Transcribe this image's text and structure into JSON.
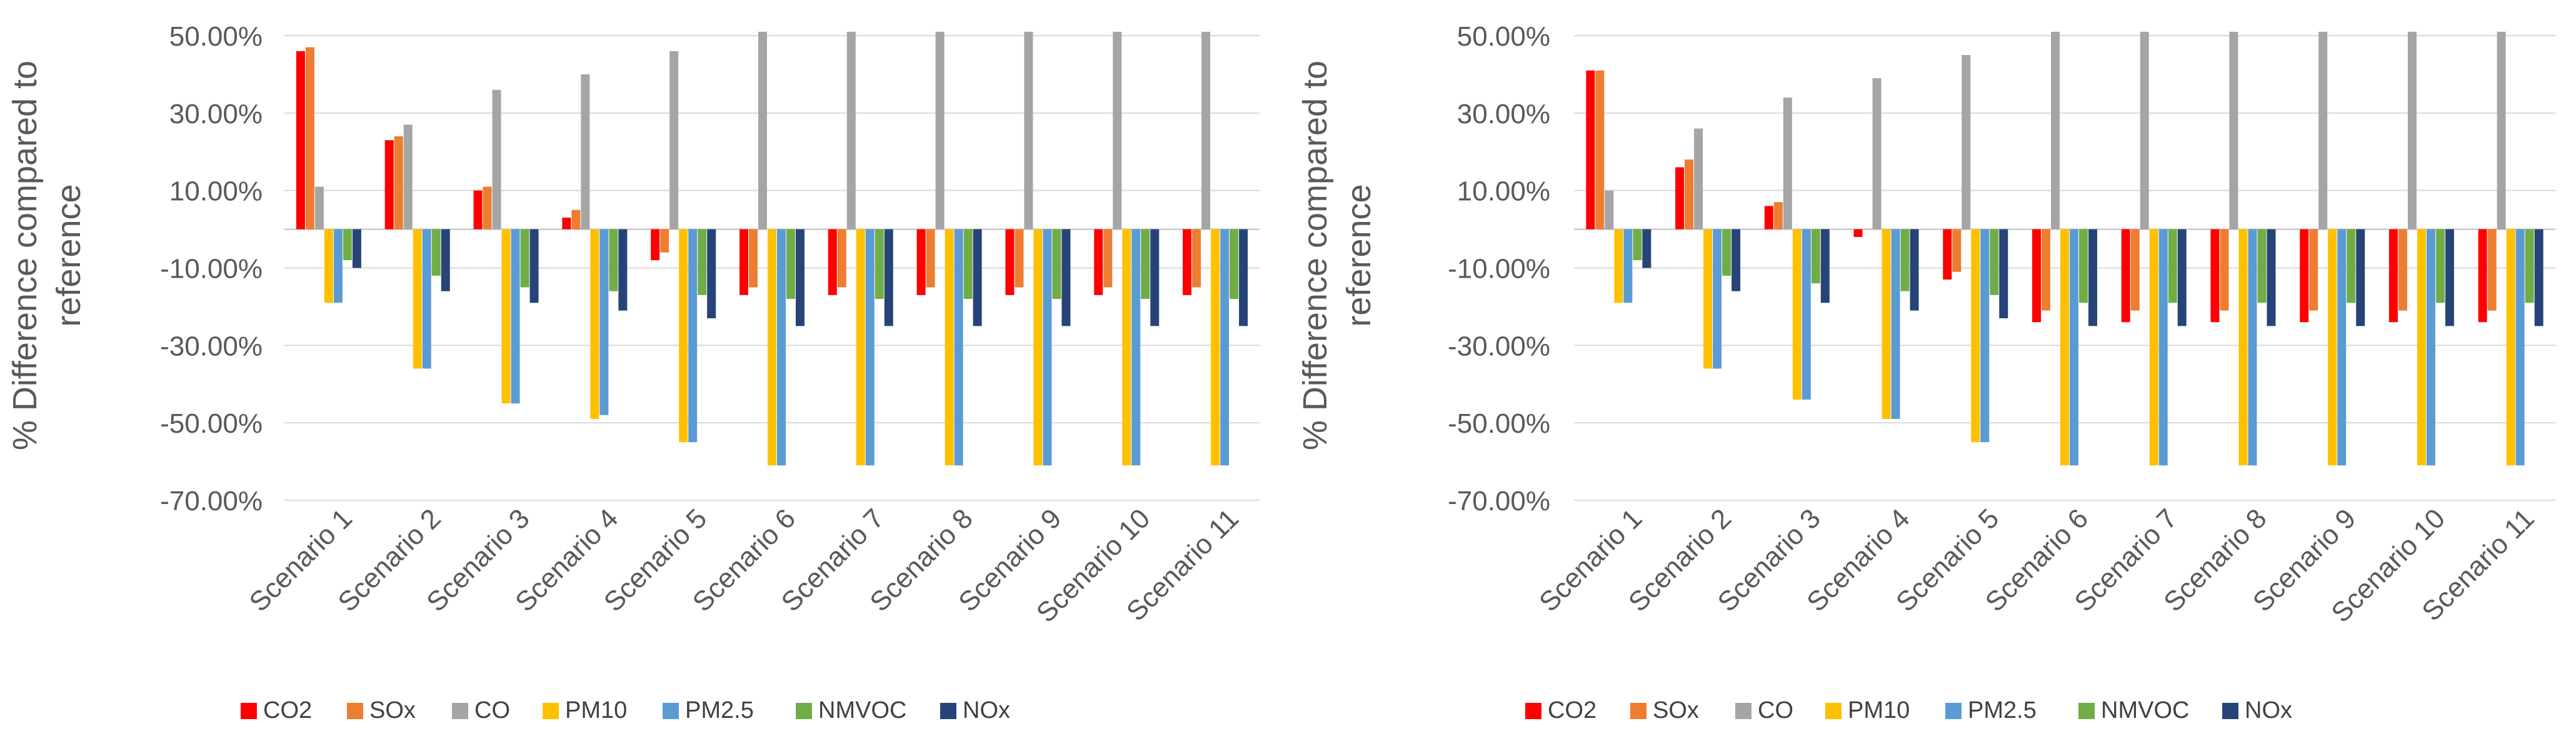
{
  "chart_data": [
    {
      "type": "bar",
      "title": "",
      "xlabel": "",
      "ylabel": "% Difference compared to reference",
      "ylim": [
        -0.7,
        0.5
      ],
      "yticks": [
        -0.7,
        -0.5,
        -0.3,
        -0.1,
        0.1,
        0.3,
        0.5
      ],
      "ytick_labels": [
        "-70.00%",
        "-50.00%",
        "-30.00%",
        "-10.00%",
        "10.00%",
        "30.00%",
        "50.00%"
      ],
      "grid": true,
      "legend": "bottom",
      "categories": [
        "Scenario 1",
        "Scenario 2",
        "Scenario 3",
        "Scenario 4",
        "Scenario 5",
        "Scenario 6",
        "Scenario 7",
        "Scenario 8",
        "Scenario 9",
        "Scenario 10",
        "Scenario 11"
      ],
      "series": [
        {
          "name": "CO2",
          "color": "#ff0000",
          "values": [
            0.46,
            0.23,
            0.1,
            0.03,
            -0.08,
            -0.17,
            -0.17,
            -0.17,
            -0.17,
            -0.17,
            -0.17
          ]
        },
        {
          "name": "SOx",
          "color": "#ed7d31",
          "values": [
            0.47,
            0.24,
            0.11,
            0.05,
            -0.06,
            -0.15,
            -0.15,
            -0.15,
            -0.15,
            -0.15,
            -0.15
          ]
        },
        {
          "name": "CO",
          "color": "#a5a5a5",
          "values": [
            0.11,
            0.27,
            0.36,
            0.4,
            0.46,
            0.51,
            0.51,
            0.51,
            0.51,
            0.51,
            0.51
          ]
        },
        {
          "name": "PM10",
          "color": "#ffc000",
          "values": [
            -0.19,
            -0.36,
            -0.45,
            -0.49,
            -0.55,
            -0.61,
            -0.61,
            -0.61,
            -0.61,
            -0.61,
            -0.61
          ]
        },
        {
          "name": "PM2.5",
          "color": "#5b9bd5",
          "values": [
            -0.19,
            -0.36,
            -0.45,
            -0.48,
            -0.55,
            -0.61,
            -0.61,
            -0.61,
            -0.61,
            -0.61,
            -0.61
          ]
        },
        {
          "name": "NMVOC",
          "color": "#70ad47",
          "values": [
            -0.08,
            -0.12,
            -0.15,
            -0.16,
            -0.17,
            -0.18,
            -0.18,
            -0.18,
            -0.18,
            -0.18,
            -0.18
          ]
        },
        {
          "name": "NOx",
          "color": "#264478",
          "values": [
            -0.1,
            -0.16,
            -0.19,
            -0.21,
            -0.23,
            -0.25,
            -0.25,
            -0.25,
            -0.25,
            -0.25,
            -0.25
          ]
        }
      ]
    },
    {
      "type": "bar",
      "title": "",
      "xlabel": "",
      "ylabel": "% Difference compared to reference",
      "ylim": [
        -0.7,
        0.5
      ],
      "yticks": [
        -0.7,
        -0.5,
        -0.3,
        -0.1,
        0.1,
        0.3,
        0.5
      ],
      "ytick_labels": [
        "-70.00%",
        "-50.00%",
        "-30.00%",
        "-10.00%",
        "10.00%",
        "30.00%",
        "50.00%"
      ],
      "grid": true,
      "legend": "bottom",
      "categories": [
        "Scenario 1",
        "Scenario 2",
        "Scenario 3",
        "Scenario 4",
        "Scenario 5",
        "Scenario 6",
        "Scenario 7",
        "Scenario 8",
        "Scenario 9",
        "Scenario 10",
        "Scenario 11"
      ],
      "series": [
        {
          "name": "CO2",
          "color": "#ff0000",
          "values": [
            0.41,
            0.16,
            0.06,
            -0.02,
            -0.13,
            -0.24,
            -0.24,
            -0.24,
            -0.24,
            -0.24,
            -0.24
          ]
        },
        {
          "name": "SOx",
          "color": "#ed7d31",
          "values": [
            0.41,
            0.18,
            0.07,
            0.0,
            -0.11,
            -0.21,
            -0.21,
            -0.21,
            -0.21,
            -0.21,
            -0.21
          ]
        },
        {
          "name": "CO",
          "color": "#a5a5a5",
          "values": [
            0.1,
            0.26,
            0.34,
            0.39,
            0.45,
            0.51,
            0.51,
            0.51,
            0.51,
            0.51,
            0.51
          ]
        },
        {
          "name": "PM10",
          "color": "#ffc000",
          "values": [
            -0.19,
            -0.36,
            -0.44,
            -0.49,
            -0.55,
            -0.61,
            -0.61,
            -0.61,
            -0.61,
            -0.61,
            -0.61
          ]
        },
        {
          "name": "PM2.5",
          "color": "#5b9bd5",
          "values": [
            -0.19,
            -0.36,
            -0.44,
            -0.49,
            -0.55,
            -0.61,
            -0.61,
            -0.61,
            -0.61,
            -0.61,
            -0.61
          ]
        },
        {
          "name": "NMVOC",
          "color": "#70ad47",
          "values": [
            -0.08,
            -0.12,
            -0.14,
            -0.16,
            -0.17,
            -0.19,
            -0.19,
            -0.19,
            -0.19,
            -0.19,
            -0.19
          ]
        },
        {
          "name": "NOx",
          "color": "#264478",
          "values": [
            -0.1,
            -0.16,
            -0.19,
            -0.21,
            -0.23,
            -0.25,
            -0.25,
            -0.25,
            -0.25,
            -0.25,
            -0.25
          ]
        }
      ]
    }
  ]
}
